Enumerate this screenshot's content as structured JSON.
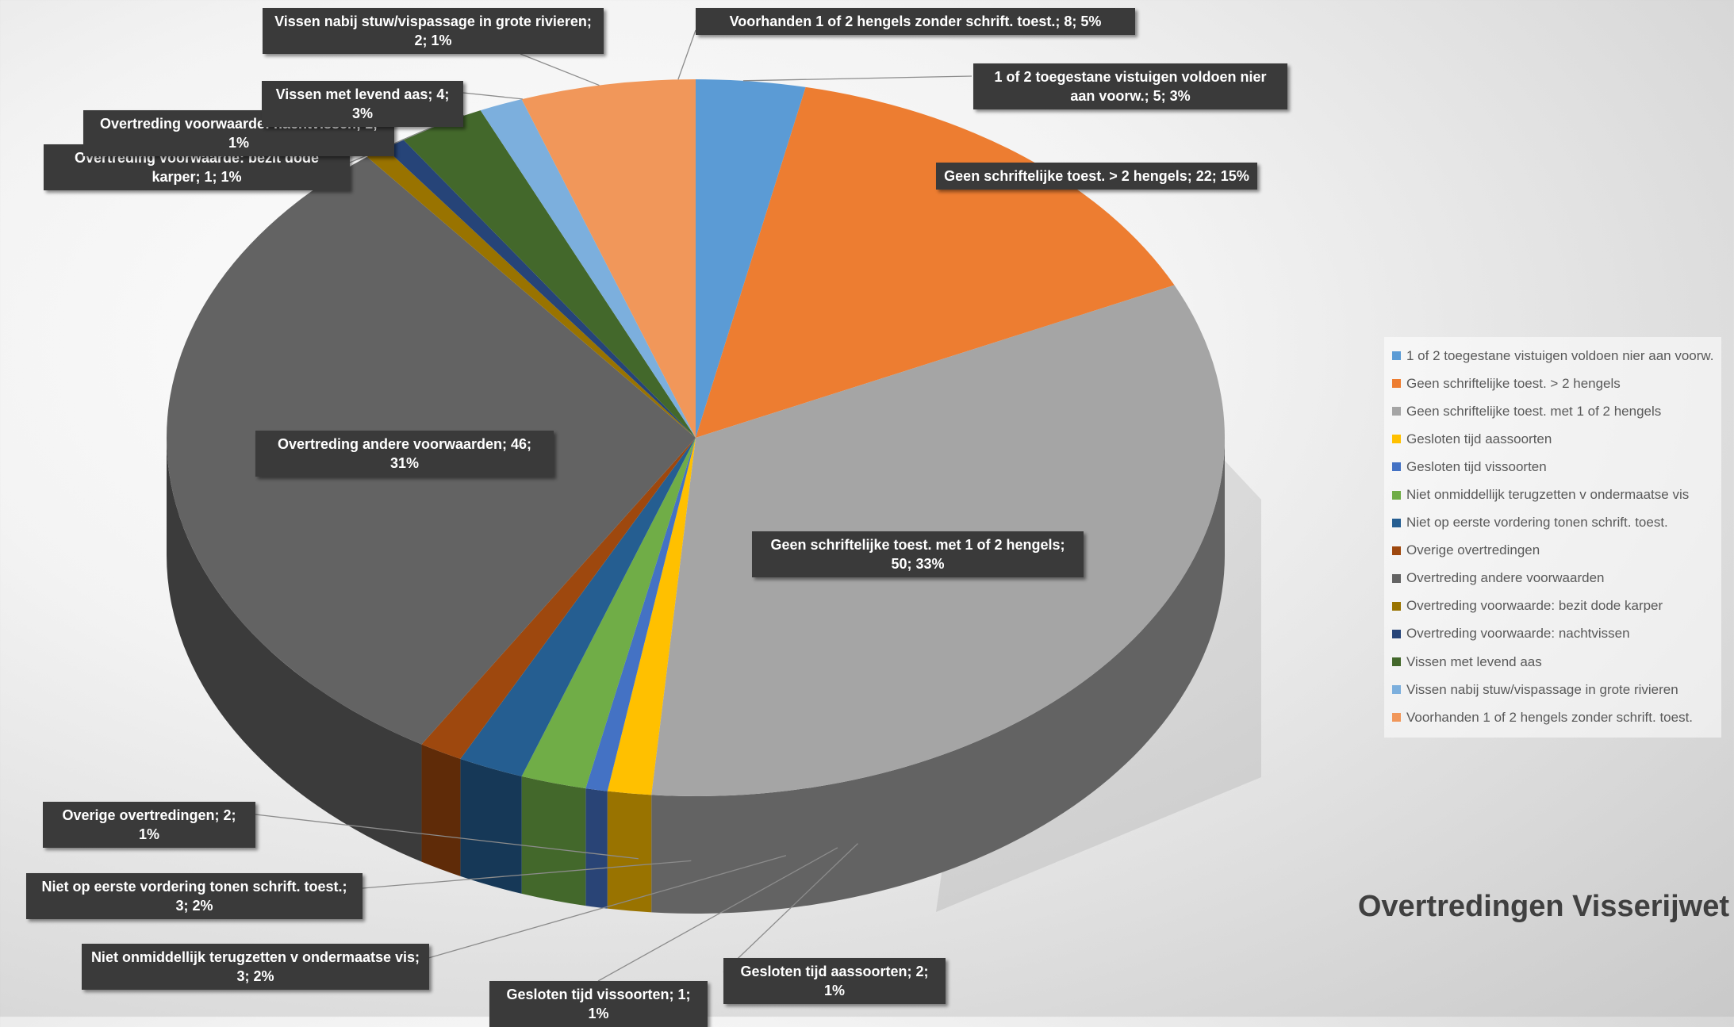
{
  "chart_data": {
    "type": "pie",
    "title": "Overtredingen Visserijwet",
    "categories": [
      "1 of 2 toegestane vistuigen voldoen nier aan voorw.",
      "Geen schriftelijke toest. > 2 hengels",
      "Geen schriftelijke toest. met 1 of 2 hengels",
      "Gesloten tijd aassoorten",
      "Gesloten tijd vissoorten",
      "Niet onmiddellijk terugzetten v ondermaatse vis",
      "Niet op eerste vordering tonen schrift. toest.",
      "Overige overtredingen",
      "Overtreding andere voorwaarden",
      "Overtreding voorwaarde: bezit dode karper",
      "Overtreding voorwaarde: nachtvissen",
      "Vissen met levend aas",
      "Vissen nabij stuw/vispassage in grote rivieren",
      "Voorhanden 1 of 2 hengels zonder schrift. toest."
    ],
    "values": [
      5,
      22,
      50,
      2,
      1,
      3,
      3,
      2,
      46,
      1,
      1,
      4,
      2,
      8
    ],
    "colors": [
      "#5B9BD5",
      "#ED7D31",
      "#A5A5A5",
      "#FFC000",
      "#4472C4",
      "#70AD47",
      "#255E91",
      "#9E480E",
      "#636363",
      "#997300",
      "#264478",
      "#43682B",
      "#7CAFDD",
      "#F1975A"
    ],
    "data_labels": [
      "1 of 2 toegestane vistuigen voldoen nier aan voorw.; 5; 3%",
      "Geen schriftelijke toest. > 2 hengels; 22; 15%",
      "Geen schriftelijke toest. met 1 of 2 hengels; 50; 33%",
      "Gesloten tijd aassoorten; 2; 1%",
      "Gesloten tijd vissoorten; 1; 1%",
      "Niet onmiddellijk terugzetten v ondermaatse vis; 3; 2%",
      "Niet op eerste vordering tonen schrift. toest.; 3; 2%",
      "Overige overtredingen; 2; 1%",
      "Overtreding andere voorwaarden; 46; 31%",
      "Overtreding voorwaarde: bezit dode karper; 1; 1%",
      "Overtreding voorwaarde: nachtvissen; 1; 1%",
      "Vissen met levend aas; 4; 3%",
      "Vissen nabij stuw/vispassage in grote rivieren; 2; 1%",
      "Voorhanden 1 of 2 hengels zonder schrift. toest.; 8; 5%"
    ],
    "legend_position": "right",
    "style": "3d-pie"
  }
}
